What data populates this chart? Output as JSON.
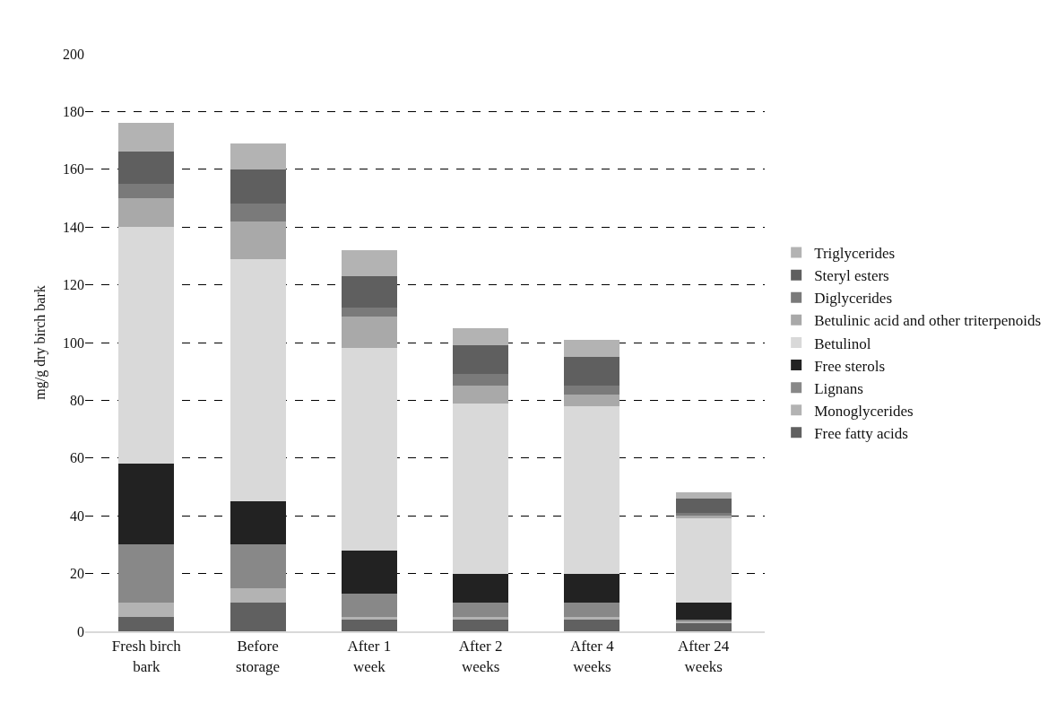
{
  "chart_data": {
    "type": "bar",
    "stacked": true,
    "ylabel": "mg/g dry birch bark",
    "categories": [
      "Fresh birch bark",
      "Before storage",
      "After 1 week",
      "After 2 weeks",
      "After 4 weeks",
      "After 24 weeks"
    ],
    "series": [
      {
        "name": "Free fatty acids",
        "color": "#606060",
        "values": [
          5,
          10,
          4,
          4,
          4,
          3
        ]
      },
      {
        "name": "Monoglycerides",
        "color": "#b3b3b3",
        "values": [
          5,
          5,
          1,
          1,
          1,
          0.5
        ]
      },
      {
        "name": "Lignans",
        "color": "#888888",
        "values": [
          20,
          15,
          8,
          5,
          5,
          0.5
        ]
      },
      {
        "name": "Free sterols",
        "color": "#222222",
        "values": [
          28,
          15,
          15,
          10,
          10,
          6
        ]
      },
      {
        "name": "Betulinol",
        "color": "#d9d9d9",
        "values": [
          82,
          84,
          70,
          59,
          58,
          29
        ]
      },
      {
        "name": "Betulinic acid and other triterpenoids",
        "color": "#a9a9a9",
        "values": [
          10,
          13,
          11,
          6,
          4,
          1
        ]
      },
      {
        "name": "Diglycerides",
        "color": "#7a7a7a",
        "values": [
          5,
          6,
          3,
          4,
          3,
          1
        ]
      },
      {
        "name": "Steryl esters",
        "color": "#5f5f5f",
        "values": [
          11,
          12,
          11,
          10,
          10,
          5
        ]
      },
      {
        "name": "Triglycerides",
        "color": "#b3b3b3",
        "values": [
          10,
          9,
          9,
          6,
          6,
          2
        ]
      }
    ],
    "ylim": [
      0,
      200
    ],
    "yticks": [
      0,
      20,
      40,
      60,
      80,
      100,
      120,
      140,
      160,
      180,
      200
    ],
    "grid": "y",
    "legend": "right"
  }
}
